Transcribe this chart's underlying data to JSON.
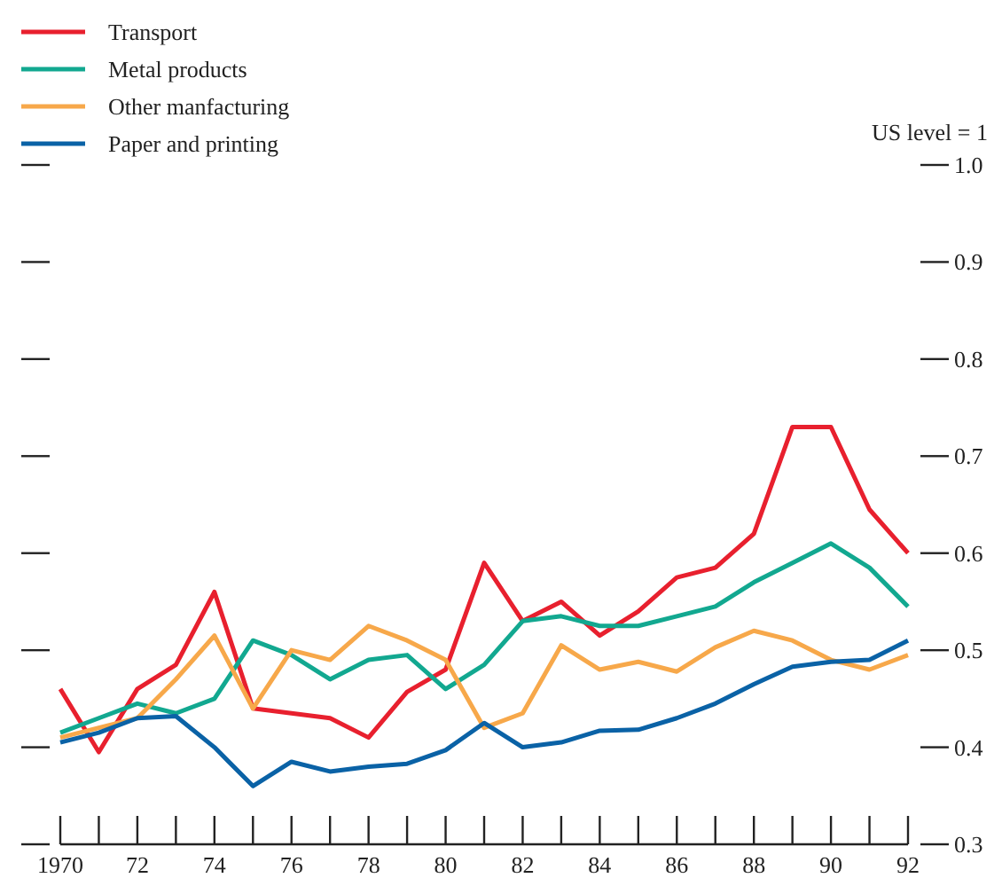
{
  "chart_data": {
    "type": "line",
    "ylabel": "US level = 1",
    "x": [
      1970,
      1971,
      1972,
      1973,
      1974,
      1975,
      1976,
      1977,
      1978,
      1979,
      1980,
      1981,
      1982,
      1983,
      1984,
      1985,
      1986,
      1987,
      1988,
      1989,
      1990,
      1991,
      1992
    ],
    "xlim": [
      1970,
      1992
    ],
    "xticks": [
      {
        "value": 1970,
        "label": "1970"
      },
      {
        "value": 1971,
        "label": null
      },
      {
        "value": 1972,
        "label": "72"
      },
      {
        "value": 1973,
        "label": null
      },
      {
        "value": 1974,
        "label": "74"
      },
      {
        "value": 1975,
        "label": null
      },
      {
        "value": 1976,
        "label": "76"
      },
      {
        "value": 1977,
        "label": null
      },
      {
        "value": 1978,
        "label": "78"
      },
      {
        "value": 1979,
        "label": null
      },
      {
        "value": 1980,
        "label": "80"
      },
      {
        "value": 1981,
        "label": null
      },
      {
        "value": 1982,
        "label": "82"
      },
      {
        "value": 1983,
        "label": null
      },
      {
        "value": 1984,
        "label": "84"
      },
      {
        "value": 1985,
        "label": null
      },
      {
        "value": 1986,
        "label": "86"
      },
      {
        "value": 1987,
        "label": null
      },
      {
        "value": 1988,
        "label": "88"
      },
      {
        "value": 1989,
        "label": null
      },
      {
        "value": 1990,
        "label": "90"
      },
      {
        "value": 1991,
        "label": null
      },
      {
        "value": 1992,
        "label": "92"
      }
    ],
    "ylim": [
      0.3,
      1.0
    ],
    "yticks": [
      0.3,
      0.4,
      0.5,
      0.6,
      0.7,
      0.8,
      0.9,
      {
        "value": 1.0,
        "label": "1.0"
      }
    ],
    "legend": "top left",
    "grid": false,
    "series": [
      {
        "name": "Transport",
        "color": "#e8202e",
        "values": [
          0.46,
          0.395,
          0.46,
          0.485,
          0.56,
          0.44,
          0.435,
          0.43,
          0.41,
          0.457,
          0.48,
          0.59,
          0.53,
          0.55,
          0.515,
          0.54,
          0.575,
          0.585,
          0.62,
          0.73,
          0.73,
          0.645,
          0.6
        ]
      },
      {
        "name": "Metal products",
        "color": "#12a890",
        "values": [
          0.415,
          0.43,
          0.445,
          0.435,
          0.45,
          0.51,
          0.495,
          0.47,
          0.49,
          0.495,
          0.46,
          0.485,
          0.53,
          0.535,
          0.525,
          0.525,
          0.535,
          0.545,
          0.57,
          0.59,
          0.61,
          0.585,
          0.545
        ]
      },
      {
        "name": "Other manfacturing",
        "color": "#f7a84a",
        "values": [
          0.41,
          0.42,
          0.43,
          0.47,
          0.515,
          0.44,
          0.5,
          0.49,
          0.525,
          0.51,
          0.49,
          0.42,
          0.435,
          0.505,
          0.48,
          0.488,
          0.478,
          0.503,
          0.52,
          0.51,
          0.49,
          0.48,
          0.495
        ]
      },
      {
        "name": "Paper and printing",
        "color": "#0a62a6",
        "values": [
          0.405,
          0.415,
          0.43,
          0.432,
          0.4,
          0.36,
          0.385,
          0.375,
          0.38,
          0.383,
          0.397,
          0.425,
          0.4,
          0.405,
          0.417,
          0.418,
          0.43,
          0.445,
          0.465,
          0.483,
          0.488,
          0.49,
          0.51
        ]
      }
    ]
  }
}
